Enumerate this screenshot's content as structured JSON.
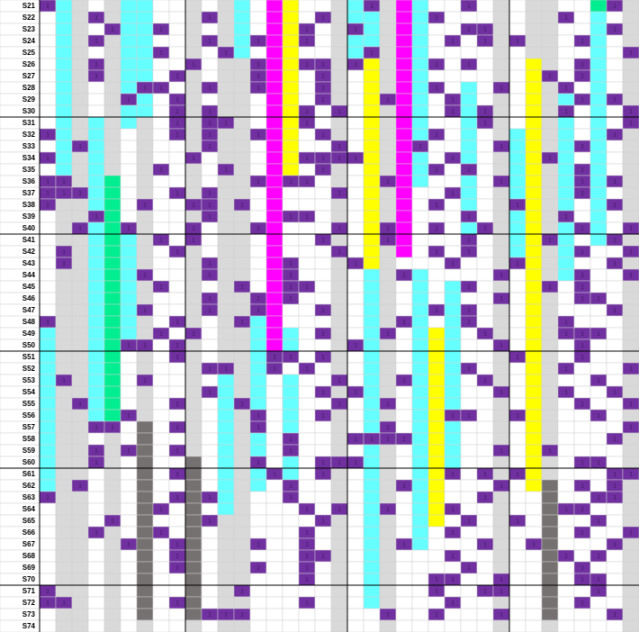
{
  "rows": [
    {
      "label": "S21",
      "cells": "1cgwgccwwgwgcwmywwgc1gmcww1wgwggwwe1g"
    },
    {
      "label": "S22",
      "cells": "wcg1gccwwg1gcwmyw1gccgmc1wwwgwgg1wcwg"
    },
    {
      "label": "S23",
      "cells": "wcgw1cc1wgwgcwmy1wg1cgmcww11gwggwwc1g"
    },
    {
      "label": "S24",
      "cells": "wcg1gccwwg1gc1my1wgccgmcw1w1g1ggw1cwg"
    },
    {
      "label": "S25",
      "cells": "wcgwgcc1wgw1cwmywwgc1gmcwwwwgwggwwcw1"
    },
    {
      "label": "S26",
      "cells": "wcg1gccww1wgg1my11g1ygmc1w1wgwygw1cwg"
    },
    {
      "label": "S27",
      "cells": "wcg1gccw1gwgg1myw1gwygmcwwwwgwy1w1cwg"
    },
    {
      "label": "S28",
      "cells": "wcgwgc11wg1gg1myw1gwygmc1wcw1wyg1wcwg"
    },
    {
      "label": "S29",
      "cells": "wcgwg1cw1gwggwmyw1gwy1mcw1cwgwygc1c1g"
    },
    {
      "label": "S30",
      "cells": "wcgwgccw1g1ggwmy1w1wygmcw1c1gwyg1wcw1"
    },
    {
      "label": "S31",
      "cells": "wcgcgcgw1g11gwmy1wgwygmcwwc1gwygcwcw1"
    },
    {
      "label": "S32",
      "cells": "1cgcgwgw1g1gg1myw1gwygmc1wcwgcygcwc1g"
    },
    {
      "label": "S33",
      "cells": "wc1cgwgwwg1ggwmyww1wygm1wwcw1cygc1cwg"
    },
    {
      "label": "S34",
      "cells": "1cgcgwgww1wggwmy1111ygmcw1cwgcy1cwcwg"
    },
    {
      "label": "S35",
      "cells": "wcgcgwg1wgw1gwmyw1gwygmc1w1wgcygc1cwg"
    },
    {
      "label": "S36",
      "cells": "11gcewgwwgwgg1m11wgwy1mcwwcw1cygc1c1g"
    },
    {
      "label": "S37",
      "cells": "111cewgw1g1ggwmwww1wygmww1cwgcygc1cwg"
    },
    {
      "label": "S38",
      "cells": "1ggcew1ww11g1wmwwwgwygmw1wcwg1ygcwc1g"
    },
    {
      "label": "S39",
      "cells": "wgg1ewgwwg1ggwm11wgwygmwww1wgcyg1wcwg"
    },
    {
      "label": "S40",
      "cells": "wg1ce1gww1wgg1mwww1wy1mw1wc1gcygc1cw1"
    },
    {
      "label": "S41",
      "cells": "wggcecg1w1wggwmww1gwy1mwww1wgcy1cwc1g"
    },
    {
      "label": "S42",
      "cells": "w1gcecgw1gwggwmwww1wygmw1w1wgcygc1ww1"
    },
    {
      "label": "S43",
      "cells": "w1gcecgwwg1ggwm1wwg1ygwww1wwg1ygcww1g"
    },
    {
      "label": "S44",
      "cells": "wggcec1wwg1ggwm1wwgwcg1cwwww1wygc1ww1"
    },
    {
      "label": "S45",
      "cells": "wggcecg1wgwg1wm11wgwcgwcwc1wgwy1w1wwg"
    },
    {
      "label": "S46",
      "cells": "wggcecgwwg1gg1m1wwgwcgwcwcww1wygw11wg"
    },
    {
      "label": "S47",
      "cells": "wggcec1wwg1gg1mww1gwcgwc1c1wgwygwww1g"
    },
    {
      "label": "S48",
      "cells": "1ggcecgw1gwg1cmwwwgwcg1cwc1wgwyg1wwwg"
    },
    {
      "label": "S49",
      "cells": "cggcecg1w1wggcmcw1gwc1wcycw1gwyg111wg"
    },
    {
      "label": "S50",
      "cells": "cggce11w1gwggcmcwwg1cgwcycww1wygw1wwg"
    },
    {
      "label": "S51",
      "cells": "cggcewgw1gwggc11w1gwcgwcycwwg1ygw1wwg"
    },
    {
      "label": "S52",
      "cells": "cggcewgwwg11gc1w1wgwcgwcyc1wgwyg1www1"
    },
    {
      "label": "S53",
      "cells": "c1gcew1wwgwcgcwcww1wcg1cycw1gwygww1wg"
    },
    {
      "label": "S54",
      "cells": "cggcewgwwg1cgcwcw1g1cgwcycww1wyg1ww1g"
    },
    {
      "label": "S55",
      "cells": "cg1cewgw1gwc1cwcww1wc1wcycwwgwygw1ww1"
    },
    {
      "label": "S56",
      "cells": "cggce1gwwgwcg1wcw1gwcgwcy11wg1ygww1wg"
    },
    {
      "label": "S57",
      "cells": "cgg11wdw1gwcg1wcwwgwc1wcycwwgwygwwww1"
    },
    {
      "label": "S58",
      "cells": "cggwgwdwwgwcgcw1wwg1111cycwwgwygwww1g"
    },
    {
      "label": "S59",
      "cells": "cgg1g1dw1gwcgcw1wwgwcgwcycww1wy1wwwwg"
    },
    {
      "label": "S60",
      "cells": "cgg1gwdwwdwcg1wcw111cgwcycwwgwygw11wg"
    },
    {
      "label": "S61",
      "cells": "cggwgwdw1dwcgc1cw1gwcgwcy1w1g1ygwww11"
    },
    {
      "label": "S62",
      "cells": "cg1wgwdwwdwcgcw1wwgwcg1cywww1wydw1w1g"
    },
    {
      "label": "S63",
      "cells": "1ggwgwdw1d1cgww1wwgwcgwcyww1gwwdww11g"
    },
    {
      "label": "S64",
      "cells": "wggwgwd1wdwcgwww1w1wc1wcy1wwgwwd11wwg"
    },
    {
      "label": "S65",
      "cells": "wggw1wdwwd1ggwwww1gwcgwcyw1wg1wdww1wg"
    },
    {
      "label": "S66",
      "cells": "wgg1gwd1wdwggwww1wgwcgwcw1wwgwwdw1ww1"
    },
    {
      "label": "S67",
      "cells": "wggwg1dw1dwgg1ww1wgwcg1cwww1gw1dwww1g"
    },
    {
      "label": "S68",
      "cells": "wggwgwdw1dwggwww11gwcgwww1wwgwwd1w1wg"
    },
    {
      "label": "S69",
      "cells": "wggwgwdw1dwgg1ww1wgwcgwwww1wgwwdw1wwg"
    },
    {
      "label": "S70",
      "cells": "wggwgwdwwdwggwww1wgwcgww11ww1wwdw11wg"
    },
    {
      "label": "S71",
      "cells": "1ggwgwdwwdwg1wwwwwgwcgww1ww11wwdww1wg"
    },
    {
      "label": "S72",
      "cells": "11gwgwdw1dwggwww1wgwcgwww1wwgwwdw1wwg"
    },
    {
      "label": "S73",
      "cells": "wggwgwdwwd111wwwwwgww1ww1www1wwdwww1g"
    },
    {
      "label": "S74",
      "cells": "wggwgwgwwgwggwwwwwgwwgwwwwwwgwwgwwwwg"
    }
  ]
}
